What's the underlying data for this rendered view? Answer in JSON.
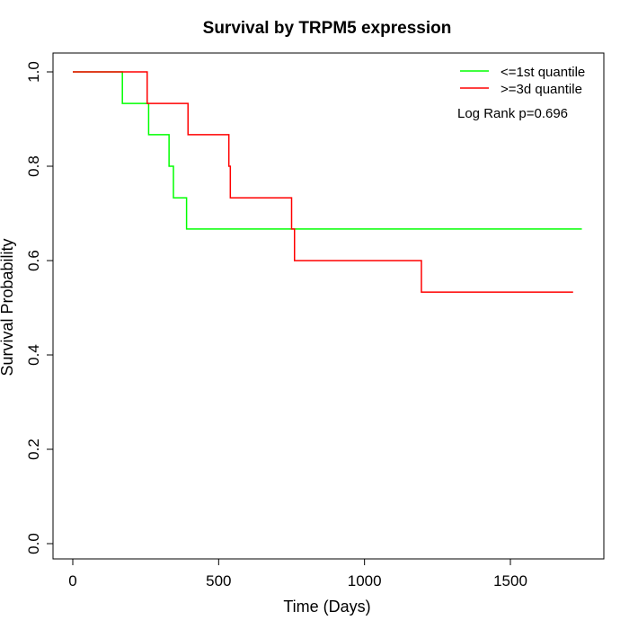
{
  "chart_data": {
    "type": "line",
    "title": "Survival by TRPM5 expression",
    "xlabel": "Time (Days)",
    "ylabel": "Survival Probability",
    "xlim": [
      0,
      1800
    ],
    "ylim": [
      0,
      1.0
    ],
    "x_ticks": [
      0,
      500,
      1000,
      1500
    ],
    "y_ticks": [
      0.0,
      0.2,
      0.4,
      0.6,
      0.8,
      1.0
    ],
    "x_tick_labels": [
      "0",
      "500",
      "1000",
      "1500"
    ],
    "y_tick_labels": [
      "0.0",
      "0.2",
      "0.4",
      "0.6",
      "0.8",
      "1.0"
    ],
    "grid": false,
    "legend_position": "top-right",
    "annotation": "Log Rank p=0.696",
    "series": [
      {
        "name": "<=1st quantile",
        "color": "#00ff00",
        "step": true,
        "x": [
          0,
          170,
          260,
          330,
          345,
          390,
          1745
        ],
        "y": [
          1.0,
          0.933,
          0.867,
          0.8,
          0.733,
          0.667,
          0.667
        ]
      },
      {
        "name": ">=3d quantile",
        "color": "#ff0000",
        "step": true,
        "x": [
          0,
          255,
          395,
          535,
          540,
          750,
          760,
          1195,
          1715
        ],
        "y": [
          1.0,
          0.933,
          0.867,
          0.8,
          0.733,
          0.667,
          0.6,
          0.533,
          0.533
        ]
      }
    ]
  }
}
